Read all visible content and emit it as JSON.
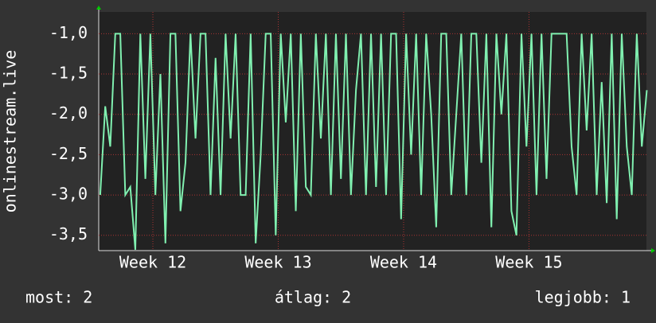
{
  "chart_data": {
    "type": "line",
    "ylabel": "onlinestream.live",
    "color": "#80f0b0",
    "grid": true,
    "xlim": [
      11.568,
      15.937
    ],
    "xticks": [
      {
        "value": 12,
        "label": "Week 12"
      },
      {
        "value": 13,
        "label": "Week 13"
      },
      {
        "value": 14,
        "label": "Week 14"
      },
      {
        "value": 15,
        "label": "Week 15"
      }
    ],
    "ylim": [
      -3.69,
      -0.73
    ],
    "yticks": [
      {
        "value": -1,
        "label": "-1,0"
      },
      {
        "value": -1.5,
        "label": "-1,5"
      },
      {
        "value": -2,
        "label": "-2,0"
      },
      {
        "value": -2.5,
        "label": "-2,5"
      },
      {
        "value": -3,
        "label": "-3,0"
      },
      {
        "value": -3.5,
        "label": "-3,5"
      }
    ],
    "x": [
      11.58,
      11.62,
      11.66,
      11.7,
      11.74,
      11.78,
      11.82,
      11.86,
      11.9,
      11.94,
      11.98,
      12.02,
      12.06,
      12.1,
      12.14,
      12.18,
      12.22,
      12.26,
      12.3,
      12.34,
      12.38,
      12.42,
      12.46,
      12.5,
      12.54,
      12.58,
      12.62,
      12.66,
      12.7,
      12.74,
      12.78,
      12.82,
      12.86,
      12.9,
      12.94,
      12.98,
      13.02,
      13.06,
      13.1,
      13.14,
      13.18,
      13.22,
      13.26,
      13.3,
      13.34,
      13.38,
      13.42,
      13.46,
      13.5,
      13.54,
      13.58,
      13.62,
      13.66,
      13.7,
      13.74,
      13.78,
      13.82,
      13.86,
      13.9,
      13.94,
      13.98,
      14.02,
      14.06,
      14.1,
      14.14,
      14.18,
      14.22,
      14.26,
      14.3,
      14.34,
      14.38,
      14.42,
      14.46,
      14.5,
      14.54,
      14.58,
      14.62,
      14.66,
      14.7,
      14.74,
      14.78,
      14.82,
      14.86,
      14.9,
      14.94,
      14.98,
      15.02,
      15.06,
      15.1,
      15.14,
      15.18,
      15.22,
      15.26,
      15.3,
      15.34,
      15.38,
      15.42,
      15.46,
      15.5,
      15.54,
      15.58,
      15.62,
      15.66,
      15.7,
      15.74,
      15.78,
      15.82,
      15.86,
      15.9,
      15.94
    ],
    "values": [
      -3,
      -1.9,
      -2.4,
      -1,
      -1,
      -3,
      -2.9,
      -3.68,
      -1,
      -2.8,
      -1,
      -3,
      -1.5,
      -3.6,
      -1,
      -1,
      -3.2,
      -2.6,
      -1,
      -2.3,
      -1,
      -1,
      -3,
      -1.3,
      -3,
      -1,
      -2.3,
      -1,
      -3,
      -3,
      -1,
      -3.6,
      -2.5,
      -1,
      -1,
      -3.5,
      -1,
      -2.1,
      -1,
      -3.2,
      -1,
      -2.9,
      -3,
      -1,
      -2.3,
      -1,
      -3,
      -1,
      -2.8,
      -1,
      -3,
      -1.7,
      -1,
      -3,
      -1,
      -2.9,
      -1,
      -3,
      -1,
      -1,
      -3.3,
      -1,
      -2.5,
      -1,
      -3,
      -1,
      -2,
      -3.4,
      -1,
      -1,
      -3,
      -2,
      -1,
      -3,
      -1,
      -1,
      -2.6,
      -1,
      -3.4,
      -1,
      -2,
      -1,
      -3.2,
      -3.5,
      -1,
      -2.4,
      -1,
      -3,
      -1,
      -2.8,
      -1,
      -1,
      -1,
      -1,
      -2.4,
      -3,
      -1,
      -2.2,
      -1,
      -3,
      -1.6,
      -3.1,
      -1,
      -3.3,
      -1,
      -2.4,
      -3,
      -1,
      -2.4,
      -1.7
    ],
    "annotations": [
      "most: 2",
      "átlag: 2",
      "legjobb: 1"
    ]
  }
}
